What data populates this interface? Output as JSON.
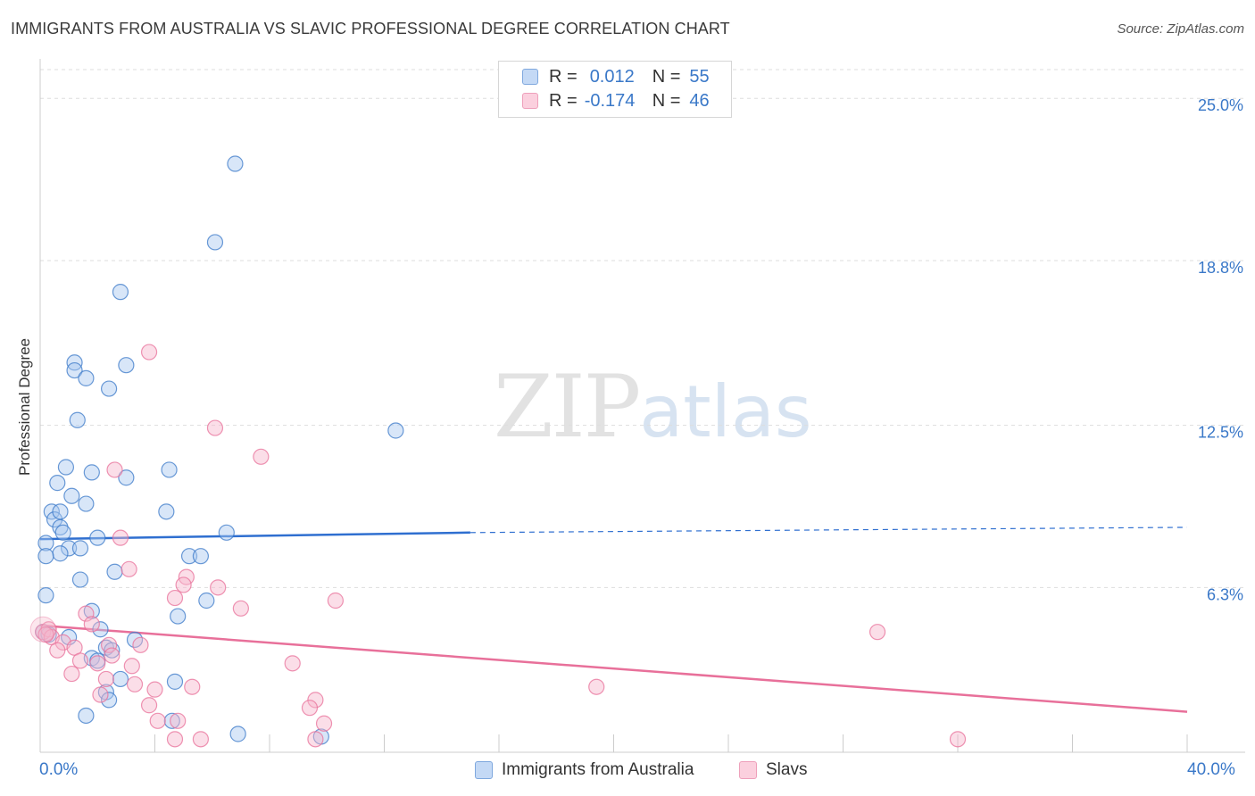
{
  "title": "IMMIGRANTS FROM AUSTRALIA VS SLAVIC PROFESSIONAL DEGREE CORRELATION CHART",
  "source": "Source: ZipAtlas.com",
  "watermark": {
    "zip": "ZIP",
    "atlas": "atlas"
  },
  "colors": {
    "blue": "#3a78c8",
    "blue_fill": "#a9c8f0",
    "blue_line": "#2f6fd0",
    "pink": "#e8709a",
    "pink_fill": "#f6b6cb",
    "grid": "#dddddd"
  },
  "legend": {
    "rows": [
      {
        "r_label": "R =",
        "r_value": "0.012",
        "n_label": "N =",
        "n_value": "55"
      },
      {
        "r_label": "R =",
        "r_value": "-0.174",
        "n_label": "N =",
        "n_value": "46"
      }
    ]
  },
  "chart_data": {
    "type": "scatter",
    "title": "IMMIGRANTS FROM AUSTRALIA VS SLAVIC PROFESSIONAL DEGREE CORRELATION CHART",
    "xlabel": "",
    "ylabel": "Professional Degree",
    "xlim": [
      0,
      40
    ],
    "ylim": [
      0,
      26.1
    ],
    "x_tick_labels": [
      "0.0%",
      "40.0%"
    ],
    "y_ticks": [
      6.3,
      12.5,
      18.8,
      25.0
    ],
    "y_tick_labels": [
      "6.3%",
      "12.5%",
      "18.8%",
      "25.0%"
    ],
    "grid": true,
    "series": [
      {
        "name": "Immigrants from Australia",
        "R": 0.012,
        "N": 55,
        "trend": {
          "x0": 0,
          "y0": 8.15,
          "x1": 15,
          "y1": 8.4,
          "dashed_to_x": 40,
          "dashed_to_y": 8.6
        },
        "points": [
          [
            6.8,
            22.5
          ],
          [
            6.1,
            19.5
          ],
          [
            2.8,
            17.6
          ],
          [
            1.2,
            14.9
          ],
          [
            1.2,
            14.6
          ],
          [
            3.0,
            14.8
          ],
          [
            1.6,
            14.3
          ],
          [
            2.4,
            13.9
          ],
          [
            1.3,
            12.7
          ],
          [
            12.4,
            12.3
          ],
          [
            0.6,
            10.3
          ],
          [
            0.9,
            10.9
          ],
          [
            1.8,
            10.7
          ],
          [
            3.0,
            10.5
          ],
          [
            4.5,
            10.8
          ],
          [
            1.1,
            9.8
          ],
          [
            1.6,
            9.5
          ],
          [
            0.4,
            9.2
          ],
          [
            0.5,
            8.9
          ],
          [
            0.7,
            9.2
          ],
          [
            4.4,
            9.2
          ],
          [
            0.7,
            8.6
          ],
          [
            0.8,
            8.4
          ],
          [
            2.0,
            8.2
          ],
          [
            6.5,
            8.4
          ],
          [
            0.2,
            8.0
          ],
          [
            1.0,
            7.8
          ],
          [
            0.7,
            7.6
          ],
          [
            1.4,
            7.8
          ],
          [
            0.2,
            7.5
          ],
          [
            5.2,
            7.5
          ],
          [
            5.6,
            7.5
          ],
          [
            2.6,
            6.9
          ],
          [
            1.4,
            6.6
          ],
          [
            0.2,
            6.0
          ],
          [
            5.8,
            5.8
          ],
          [
            1.8,
            5.4
          ],
          [
            4.8,
            5.2
          ],
          [
            0.1,
            4.6
          ],
          [
            0.3,
            4.5
          ],
          [
            1.0,
            4.4
          ],
          [
            2.1,
            4.7
          ],
          [
            3.3,
            4.3
          ],
          [
            2.3,
            4.0
          ],
          [
            2.5,
            3.9
          ],
          [
            1.8,
            3.6
          ],
          [
            2.8,
            2.8
          ],
          [
            4.7,
            2.7
          ],
          [
            2.3,
            2.3
          ],
          [
            2.4,
            2.0
          ],
          [
            1.6,
            1.4
          ],
          [
            4.6,
            1.2
          ],
          [
            6.9,
            0.7
          ],
          [
            9.8,
            0.6
          ],
          [
            2.0,
            3.5
          ]
        ]
      },
      {
        "name": "Slavs",
        "R": -0.174,
        "N": 46,
        "trend": {
          "x0": 0,
          "y0": 4.85,
          "x1": 40,
          "y1": 1.55
        },
        "points": [
          [
            3.8,
            15.3
          ],
          [
            6.1,
            12.4
          ],
          [
            7.7,
            11.3
          ],
          [
            2.6,
            10.8
          ],
          [
            2.8,
            8.2
          ],
          [
            3.1,
            7.0
          ],
          [
            5.1,
            6.7
          ],
          [
            5.0,
            6.4
          ],
          [
            6.2,
            6.3
          ],
          [
            4.7,
            5.9
          ],
          [
            10.3,
            5.8
          ],
          [
            7.0,
            5.5
          ],
          [
            1.6,
            5.3
          ],
          [
            1.8,
            4.9
          ],
          [
            0.1,
            4.6
          ],
          [
            0.3,
            4.7
          ],
          [
            0.4,
            4.4
          ],
          [
            0.8,
            4.2
          ],
          [
            1.2,
            4.0
          ],
          [
            2.4,
            4.1
          ],
          [
            3.5,
            4.1
          ],
          [
            0.6,
            3.9
          ],
          [
            2.5,
            3.7
          ],
          [
            1.4,
            3.5
          ],
          [
            2.0,
            3.4
          ],
          [
            3.2,
            3.3
          ],
          [
            8.8,
            3.4
          ],
          [
            1.1,
            3.0
          ],
          [
            2.3,
            2.8
          ],
          [
            3.3,
            2.6
          ],
          [
            4.0,
            2.4
          ],
          [
            5.3,
            2.5
          ],
          [
            19.4,
            2.5
          ],
          [
            2.1,
            2.2
          ],
          [
            9.6,
            2.0
          ],
          [
            3.8,
            1.8
          ],
          [
            9.4,
            1.7
          ],
          [
            4.1,
            1.2
          ],
          [
            4.8,
            1.2
          ],
          [
            9.9,
            1.1
          ],
          [
            4.7,
            0.5
          ],
          [
            5.6,
            0.5
          ],
          [
            9.6,
            0.5
          ],
          [
            32.0,
            0.5
          ],
          [
            29.2,
            4.6
          ],
          [
            0.2,
            4.5
          ]
        ]
      }
    ]
  },
  "bottom_legend": [
    {
      "label": "Immigrants from Australia"
    },
    {
      "label": "Slavs"
    }
  ]
}
